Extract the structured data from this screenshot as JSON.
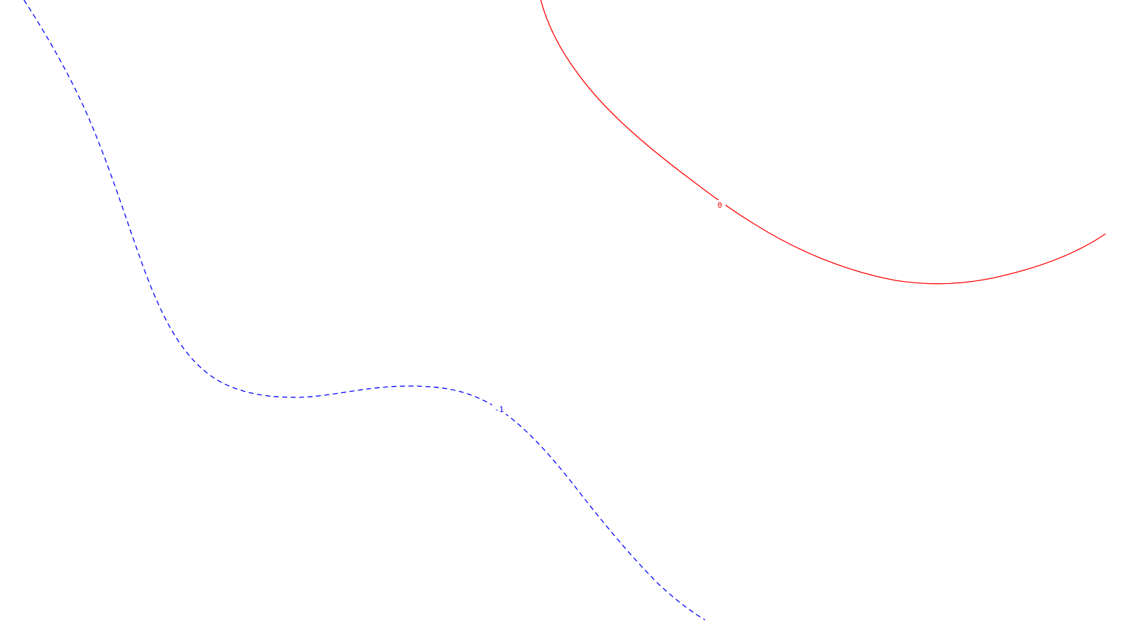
{
  "contours": [
    {
      "level_label": "0",
      "color": "#ff0000",
      "line_style": "solid"
    },
    {
      "level_label": "-1",
      "color": "#0000ff",
      "line_style": "dashed"
    }
  ]
}
